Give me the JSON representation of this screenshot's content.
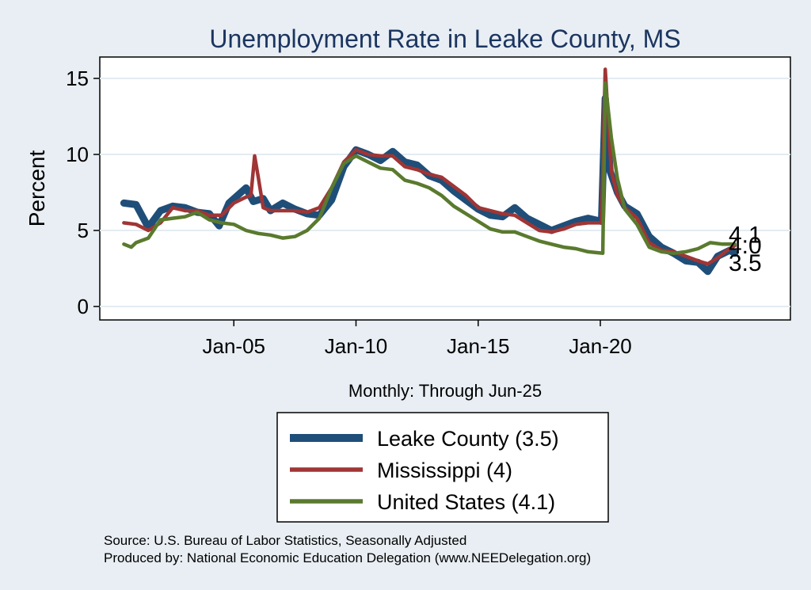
{
  "chart_data": {
    "type": "line",
    "title": "Unemployment Rate in Leake  County, MS",
    "ylabel": "Percent",
    "xlabel": "Monthly: Through Jun-25",
    "ylim": [
      0,
      16
    ],
    "xlim": [
      2000,
      2027.5
    ],
    "y_ticks": [
      0,
      5,
      10,
      15
    ],
    "x_ticks": [
      {
        "label": "Jan-05",
        "value": 2005
      },
      {
        "label": "Jan-10",
        "value": 2010
      },
      {
        "label": "Jan-15",
        "value": 2015
      },
      {
        "label": "Jan-20",
        "value": 2020
      }
    ],
    "grid": true,
    "series": [
      {
        "name": "Leake  County",
        "legend": "Leake  County (3.5)",
        "color": "#1f4e79",
        "end_label": "3.5",
        "points": [
          [
            2000.5,
            6.8
          ],
          [
            2001,
            6.7
          ],
          [
            2001.5,
            5.2
          ],
          [
            2002,
            6.3
          ],
          [
            2002.5,
            6.6
          ],
          [
            2003,
            6.5
          ],
          [
            2003.5,
            6.2
          ],
          [
            2004,
            6.1
          ],
          [
            2004.4,
            5.3
          ],
          [
            2004.8,
            6.8
          ],
          [
            2005.5,
            7.8
          ],
          [
            2005.8,
            6.9
          ],
          [
            2006.2,
            7.1
          ],
          [
            2006.5,
            6.3
          ],
          [
            2007,
            6.8
          ],
          [
            2007.5,
            6.4
          ],
          [
            2008,
            6.1
          ],
          [
            2008.5,
            6.0
          ],
          [
            2009,
            7.0
          ],
          [
            2009.5,
            9.2
          ],
          [
            2010,
            10.3
          ],
          [
            2010.5,
            10.0
          ],
          [
            2011,
            9.6
          ],
          [
            2011.5,
            10.2
          ],
          [
            2012,
            9.5
          ],
          [
            2012.5,
            9.3
          ],
          [
            2013,
            8.6
          ],
          [
            2013.5,
            8.3
          ],
          [
            2014,
            7.6
          ],
          [
            2014.5,
            7.0
          ],
          [
            2015,
            6.4
          ],
          [
            2015.5,
            6.0
          ],
          [
            2016,
            5.9
          ],
          [
            2016.5,
            6.5
          ],
          [
            2017,
            5.8
          ],
          [
            2017.5,
            5.4
          ],
          [
            2018,
            5.0
          ],
          [
            2018.5,
            5.3
          ],
          [
            2019,
            5.6
          ],
          [
            2019.5,
            5.8
          ],
          [
            2020.05,
            5.6
          ],
          [
            2020.2,
            13.7
          ],
          [
            2020.4,
            8.9
          ],
          [
            2020.7,
            7.5
          ],
          [
            2021,
            6.6
          ],
          [
            2021.5,
            6.1
          ],
          [
            2022,
            4.6
          ],
          [
            2022.5,
            3.9
          ],
          [
            2023,
            3.5
          ],
          [
            2023.5,
            3.0
          ],
          [
            2024,
            2.9
          ],
          [
            2024.4,
            2.3
          ],
          [
            2024.8,
            3.3
          ],
          [
            2025.3,
            3.7
          ],
          [
            2025.5,
            3.5
          ]
        ]
      },
      {
        "name": "Mississippi",
        "legend": "Mississippi (4)",
        "color": "#a03535",
        "end_label": "4.0",
        "points": [
          [
            2000.5,
            5.5
          ],
          [
            2001,
            5.4
          ],
          [
            2001.5,
            5.0
          ],
          [
            2002,
            5.5
          ],
          [
            2002.5,
            6.5
          ],
          [
            2003,
            6.3
          ],
          [
            2003.5,
            6.3
          ],
          [
            2004,
            6.0
          ],
          [
            2004.5,
            6.0
          ],
          [
            2005,
            6.8
          ],
          [
            2005.5,
            7.2
          ],
          [
            2005.7,
            7.3
          ],
          [
            2005.85,
            9.9
          ],
          [
            2006,
            8.5
          ],
          [
            2006.2,
            6.5
          ],
          [
            2006.5,
            6.3
          ],
          [
            2007,
            6.3
          ],
          [
            2007.5,
            6.3
          ],
          [
            2008,
            6.2
          ],
          [
            2008.5,
            6.5
          ],
          [
            2009,
            7.8
          ],
          [
            2009.5,
            9.5
          ],
          [
            2010,
            10.3
          ],
          [
            2010.5,
            10.0
          ],
          [
            2011,
            9.9
          ],
          [
            2011.5,
            9.9
          ],
          [
            2012,
            9.2
          ],
          [
            2012.5,
            9.0
          ],
          [
            2013,
            8.7
          ],
          [
            2013.5,
            8.5
          ],
          [
            2014,
            7.9
          ],
          [
            2014.5,
            7.3
          ],
          [
            2015,
            6.5
          ],
          [
            2015.5,
            6.3
          ],
          [
            2016,
            6.1
          ],
          [
            2016.5,
            6.0
          ],
          [
            2017,
            5.5
          ],
          [
            2017.5,
            5.0
          ],
          [
            2018,
            4.9
          ],
          [
            2018.5,
            5.1
          ],
          [
            2019,
            5.4
          ],
          [
            2019.5,
            5.5
          ],
          [
            2020.05,
            5.5
          ],
          [
            2020.2,
            15.6
          ],
          [
            2020.45,
            8.9
          ],
          [
            2020.7,
            7.3
          ],
          [
            2021,
            6.5
          ],
          [
            2021.5,
            5.8
          ],
          [
            2022,
            4.2
          ],
          [
            2022.5,
            3.7
          ],
          [
            2023,
            3.6
          ],
          [
            2023.5,
            3.3
          ],
          [
            2024,
            3.0
          ],
          [
            2024.4,
            2.8
          ],
          [
            2024.8,
            3.2
          ],
          [
            2025.2,
            3.7
          ],
          [
            2025.5,
            4.0
          ]
        ]
      },
      {
        "name": "United States",
        "legend": "United States (4.1)",
        "color": "#5a7a2e",
        "end_label": "4.1",
        "points": [
          [
            2000.5,
            4.1
          ],
          [
            2000.8,
            3.9
          ],
          [
            2001,
            4.2
          ],
          [
            2001.5,
            4.5
          ],
          [
            2002,
            5.7
          ],
          [
            2002.5,
            5.8
          ],
          [
            2003,
            5.9
          ],
          [
            2003.5,
            6.2
          ],
          [
            2004,
            5.7
          ],
          [
            2004.5,
            5.5
          ],
          [
            2005,
            5.4
          ],
          [
            2005.5,
            5.0
          ],
          [
            2006,
            4.8
          ],
          [
            2006.5,
            4.7
          ],
          [
            2007,
            4.5
          ],
          [
            2007.5,
            4.6
          ],
          [
            2008,
            5.0
          ],
          [
            2008.5,
            5.8
          ],
          [
            2009,
            7.8
          ],
          [
            2009.5,
            9.4
          ],
          [
            2010,
            9.9
          ],
          [
            2010.5,
            9.5
          ],
          [
            2011,
            9.1
          ],
          [
            2011.5,
            9.0
          ],
          [
            2012,
            8.3
          ],
          [
            2012.5,
            8.1
          ],
          [
            2013,
            7.8
          ],
          [
            2013.5,
            7.3
          ],
          [
            2014,
            6.6
          ],
          [
            2014.5,
            6.1
          ],
          [
            2015,
            5.6
          ],
          [
            2015.5,
            5.1
          ],
          [
            2016,
            4.9
          ],
          [
            2016.5,
            4.9
          ],
          [
            2017,
            4.6
          ],
          [
            2017.5,
            4.3
          ],
          [
            2018,
            4.1
          ],
          [
            2018.5,
            3.9
          ],
          [
            2019,
            3.8
          ],
          [
            2019.5,
            3.6
          ],
          [
            2020.1,
            3.5
          ],
          [
            2020.2,
            14.7
          ],
          [
            2020.45,
            11.1
          ],
          [
            2020.7,
            8.4
          ],
          [
            2021,
            6.4
          ],
          [
            2021.5,
            5.4
          ],
          [
            2022,
            3.9
          ],
          [
            2022.5,
            3.6
          ],
          [
            2023,
            3.5
          ],
          [
            2023.5,
            3.6
          ],
          [
            2024,
            3.8
          ],
          [
            2024.5,
            4.2
          ],
          [
            2025,
            4.1
          ],
          [
            2025.5,
            4.1
          ]
        ]
      }
    ]
  },
  "footer": {
    "source": "Source: U.S. Bureau of Labor Statistics, Seasonally Adjusted",
    "produced": "Produced by: National Economic Education Delegation (www.NEEDelegation.org)"
  }
}
